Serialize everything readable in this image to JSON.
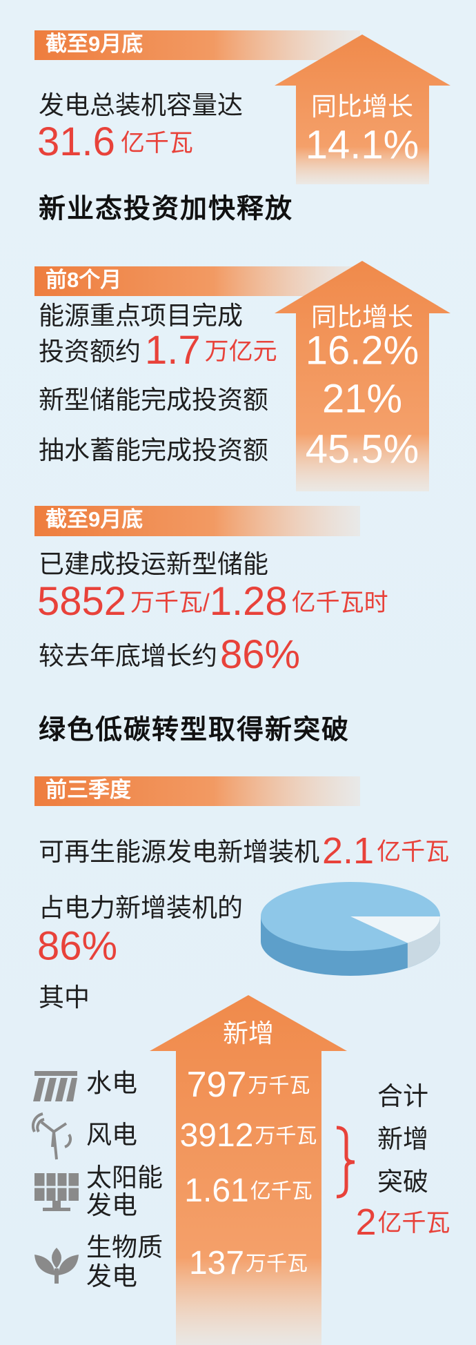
{
  "section1": {
    "tag": "截至9月底",
    "label": "发电总装机容量达",
    "value": "31.6",
    "unit": "亿千瓦",
    "growth_label": "同比增长",
    "growth": "14.1%"
  },
  "heading1": "新业态投资加快释放",
  "section2": {
    "tag": "前8个月",
    "growth_label": "同比增长",
    "items": [
      {
        "label": [
          "能源重点项目完成",
          "投资额约"
        ],
        "value": "1.7",
        "unit": "万亿元",
        "growth": "16.2%"
      },
      {
        "label": [
          "新型储能完成投资额"
        ],
        "growth": "21%"
      },
      {
        "label": [
          "抽水蓄能完成投资额"
        ],
        "growth": "45.5%"
      }
    ]
  },
  "section3": {
    "tag": "截至9月底",
    "label": "已建成投运新型储能",
    "value1": "5852",
    "unit1": "万千瓦/",
    "value2": "1.28",
    "unit2": "亿千瓦时",
    "growth_label": "较去年底增长约",
    "growth": "86%"
  },
  "heading2": "绿色低碳转型取得新突破",
  "section4": {
    "tag": "前三季度",
    "label": "可再生能源发电新增装机",
    "value": "2.1",
    "unit": "亿千瓦",
    "share_label": "占电力新增装机的",
    "share": "86%",
    "breakdown_label": "其中",
    "arrow_label": "新增",
    "items": [
      {
        "name": [
          "水电"
        ],
        "value": "797",
        "unit": "万千瓦"
      },
      {
        "name": [
          "风电"
        ],
        "value": "3912",
        "unit": "万千瓦"
      },
      {
        "name": [
          "太阳能",
          "发电"
        ],
        "value": "1.61",
        "unit": "亿千瓦"
      },
      {
        "name": [
          "生物质",
          "发电"
        ],
        "value": "137",
        "unit": "万千瓦"
      }
    ],
    "total": {
      "label": [
        "合计",
        "新增",
        "突破"
      ],
      "value": "2",
      "unit": "亿千瓦"
    }
  }
}
